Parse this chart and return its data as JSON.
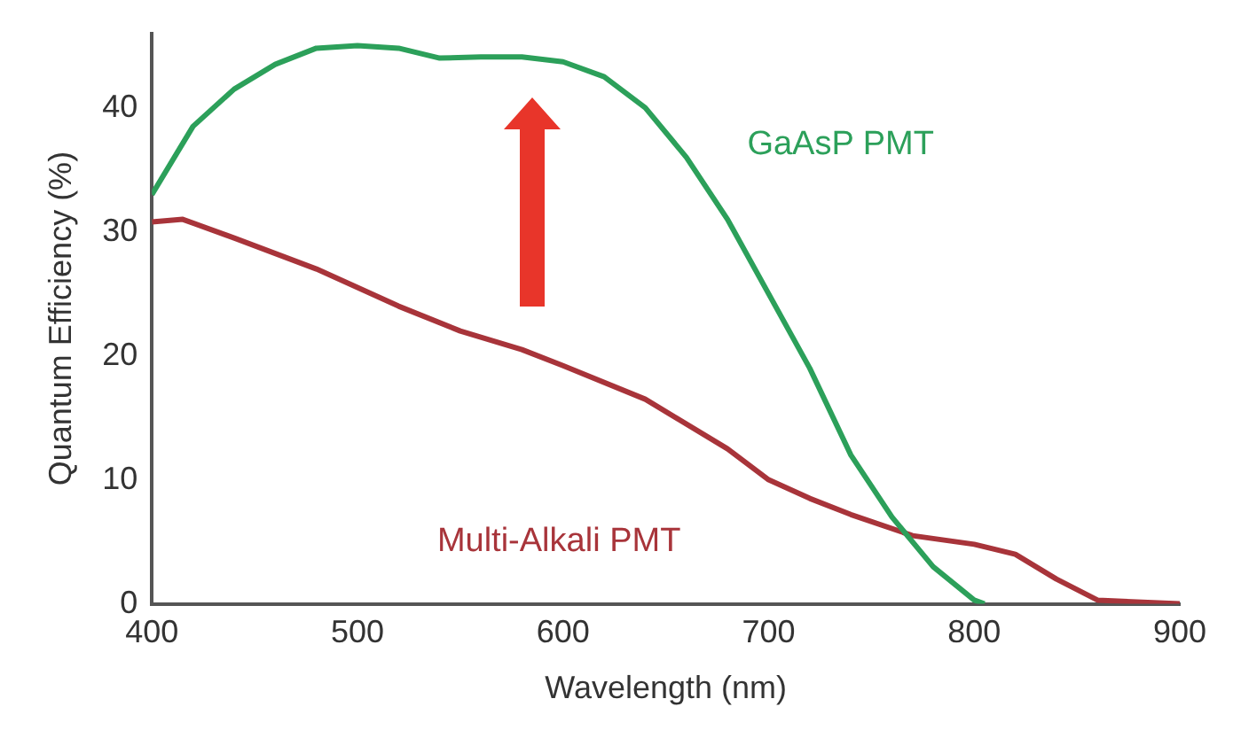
{
  "chart_data": {
    "type": "line",
    "xlabel": "Wavelength (nm)",
    "ylabel": "Quantum Efficiency (%)",
    "xlim": [
      400,
      900
    ],
    "xticks": [
      400,
      500,
      600,
      700,
      800,
      900
    ],
    "ylim": [
      0,
      46
    ],
    "yticks": [
      0,
      10,
      20,
      30,
      40
    ],
    "grid": false,
    "legend": false,
    "marker": "none",
    "series": [
      {
        "name": "GaAsP PMT",
        "color": "#2ca05a",
        "x": [
          400,
          420,
          440,
          460,
          480,
          500,
          520,
          540,
          560,
          580,
          600,
          620,
          640,
          660,
          680,
          700,
          720,
          740,
          760,
          780,
          800,
          805
        ],
        "values": [
          33,
          38.5,
          41.5,
          43.5,
          44.8,
          45,
          44.8,
          44,
          44.1,
          44.1,
          43.7,
          42.5,
          40,
          36,
          31,
          25,
          19,
          12,
          7,
          3,
          0.3,
          0
        ]
      },
      {
        "name": "Multi-Alkali PMT",
        "color": "#a8343a",
        "x": [
          400,
          415,
          440,
          480,
          520,
          550,
          580,
          600,
          640,
          680,
          700,
          720,
          740,
          770,
          800,
          820,
          840,
          860,
          900
        ],
        "values": [
          30.8,
          31,
          29.5,
          27,
          24,
          22,
          20.5,
          19.2,
          16.5,
          12.5,
          10,
          8.5,
          7.2,
          5.5,
          4.8,
          4,
          2,
          0.3,
          0
        ]
      }
    ]
  }
}
